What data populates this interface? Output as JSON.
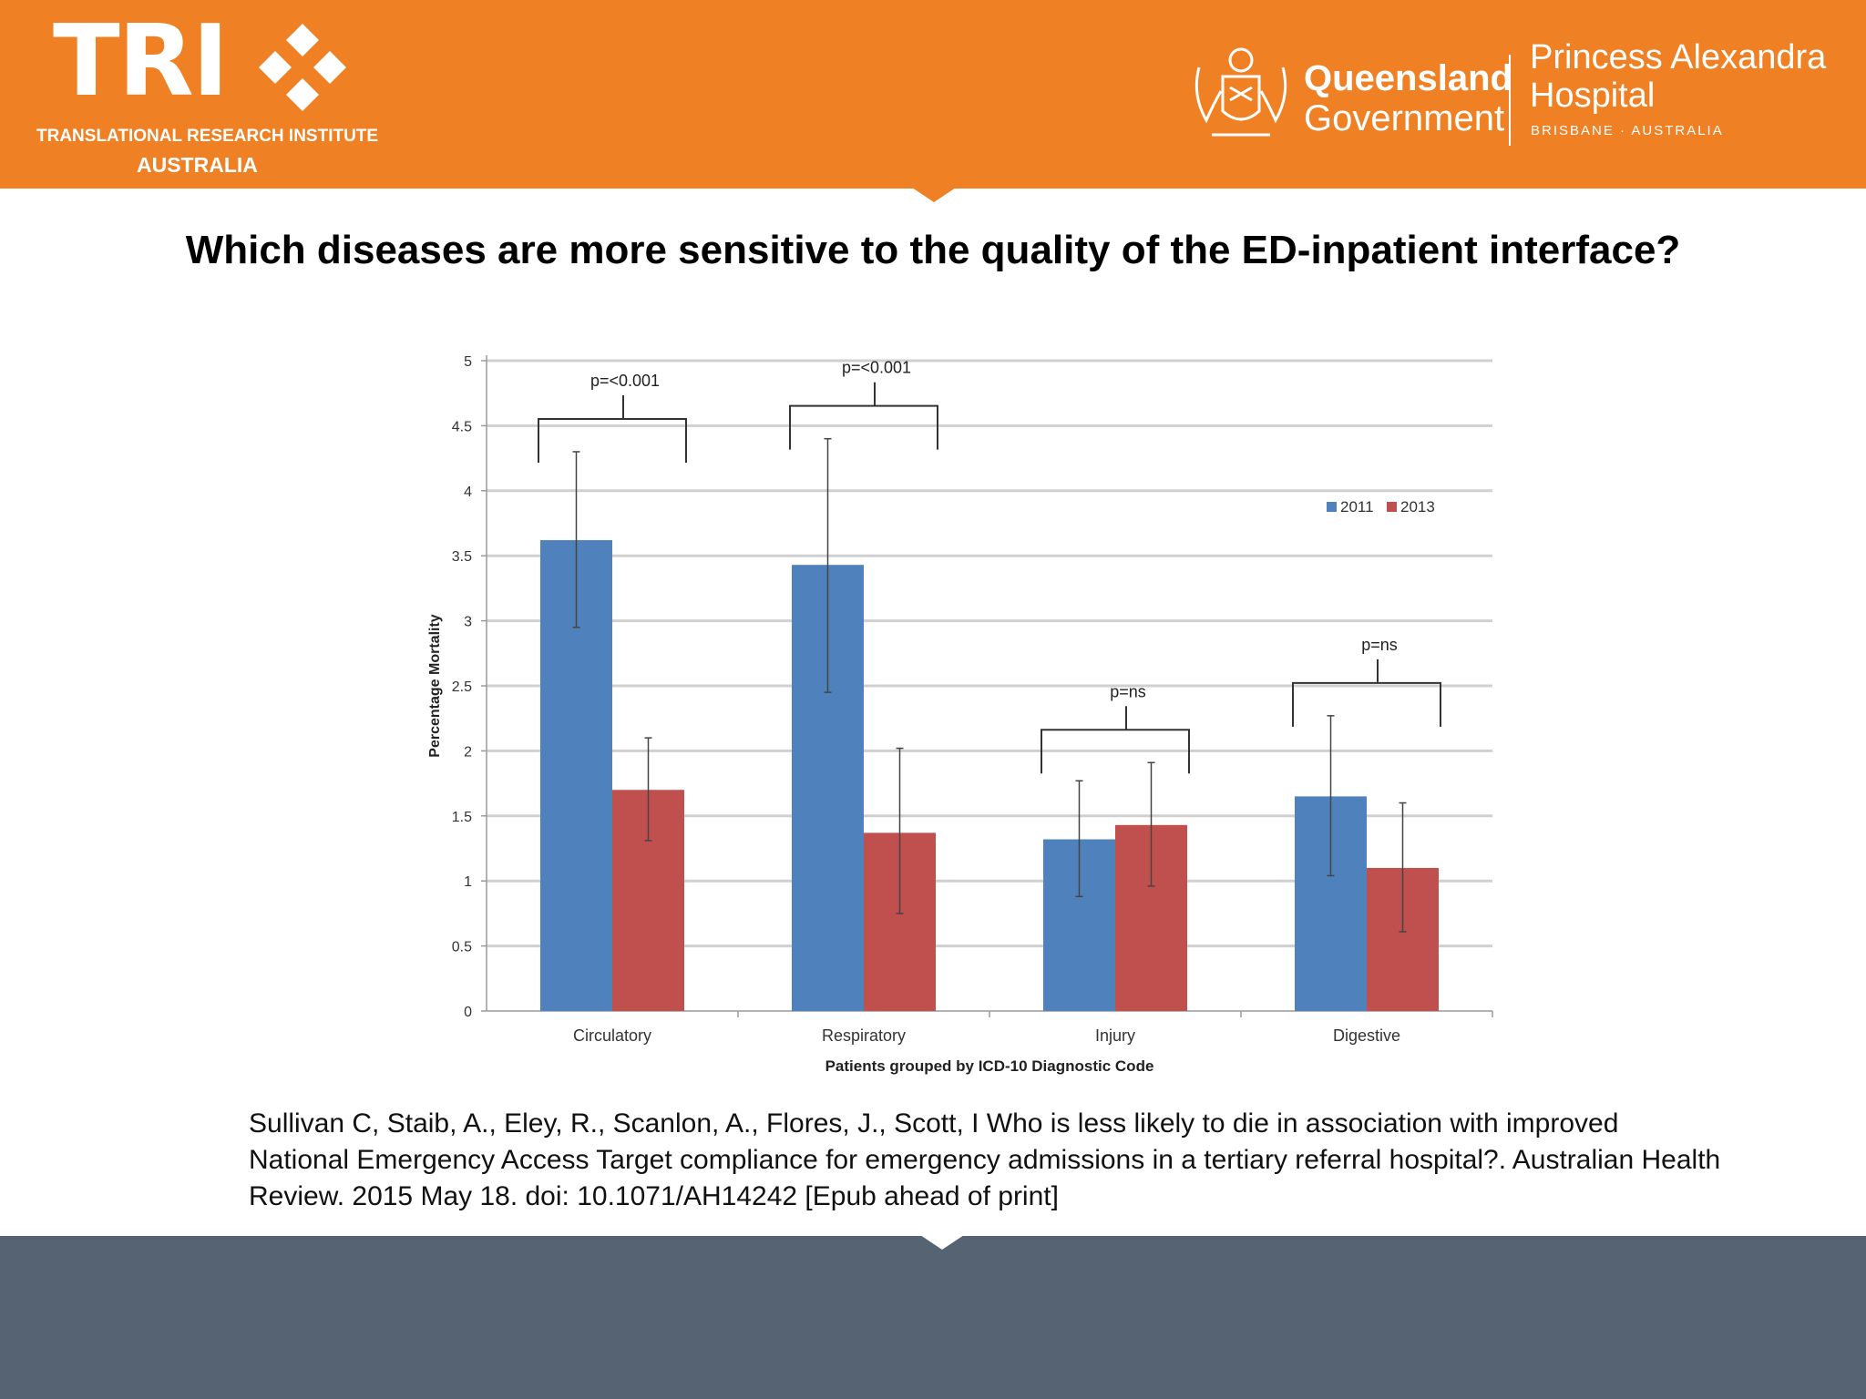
{
  "header": {
    "logo_word": "TRI",
    "logo_subtitle": "TRANSLATIONAL RESEARCH INSTITUTE",
    "logo_country": "AUSTRALIA",
    "gov_line1": "Queensland",
    "gov_line2": "Government",
    "hospital_line1": "Princess Alexandra",
    "hospital_line2": "Hospital",
    "hospital_location": "BRISBANE · AUSTRALIA"
  },
  "slide": {
    "title": "Which diseases are more sensitive to the quality of the ED-inpatient interface?"
  },
  "colors": {
    "header": "#f08024",
    "footer": "#566372",
    "series_2011": "#4f81bd",
    "series_2013": "#c0504d"
  },
  "chart_data": {
    "type": "bar",
    "categories": [
      "Circulatory",
      "Respiratory",
      "Injury",
      "Digestive"
    ],
    "series": [
      {
        "name": "2011",
        "color": "#4f81bd",
        "values": [
          3.62,
          3.43,
          1.32,
          1.65
        ],
        "err_low": [
          2.95,
          2.45,
          0.88,
          1.04
        ],
        "err_high": [
          4.3,
          4.4,
          1.77,
          2.27
        ]
      },
      {
        "name": "2013",
        "color": "#c0504d",
        "values": [
          1.7,
          1.37,
          1.43,
          1.1
        ],
        "err_low": [
          1.31,
          0.75,
          0.96,
          0.61
        ],
        "err_high": [
          2.1,
          2.02,
          1.91,
          1.6
        ]
      }
    ],
    "annotations": [
      "p=<0.001",
      "p=<0.001",
      "p=ns",
      "p=ns"
    ],
    "xlabel": "Patients grouped by ICD-10 Diagnostic Code",
    "ylabel": "Percentage Mortality",
    "ylim": [
      0,
      5
    ],
    "yticks": [
      "0",
      "0.5",
      "1",
      "1.5",
      "2",
      "2.5",
      "3",
      "3.5",
      "4",
      "4.5",
      "5"
    ],
    "grid": true,
    "legend": "top-right"
  },
  "citation": "Sullivan C, Staib, A., Eley, R., Scanlon, A., Flores, J., Scott, I Who is less likely to die in association with improved National Emergency Access Target compliance for emergency admissions in a tertiary referral hospital?. Australian Health Review. 2015 May 18. doi: 10.1071/AH14242 [Epub ahead of print]"
}
